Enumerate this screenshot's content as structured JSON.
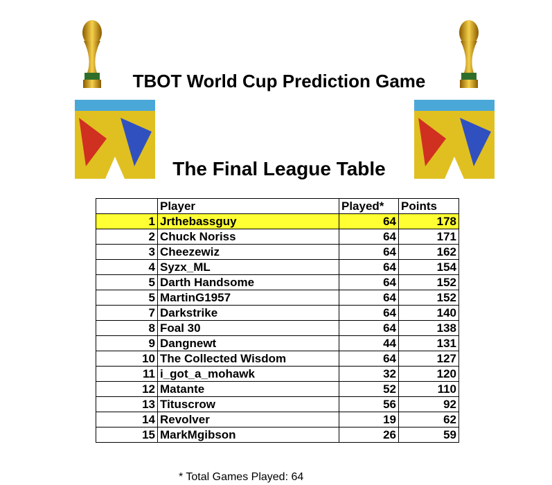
{
  "header": {
    "title": "TBOT World Cup Prediction Game",
    "subtitle": "The Final League Table"
  },
  "table": {
    "columns": [
      "Player",
      "Played*",
      "Points"
    ],
    "rows": [
      [
        1,
        "Jrthebassguy",
        64,
        178
      ],
      [
        2,
        "Chuck Noriss",
        64,
        171
      ],
      [
        3,
        "Cheezewiz",
        64,
        162
      ],
      [
        4,
        "Syzx_ML",
        64,
        154
      ],
      [
        5,
        "Darth Handsome",
        64,
        152
      ],
      [
        5,
        "MartinG1957",
        64,
        152
      ],
      [
        7,
        "Darkstrike",
        64,
        140
      ],
      [
        8,
        "Foal 30",
        64,
        138
      ],
      [
        9,
        "Dangnewt",
        44,
        131
      ],
      [
        10,
        "The Collected Wisdom",
        64,
        127
      ],
      [
        11,
        "i_got_a_mohawk",
        32,
        120
      ],
      [
        12,
        "Matante",
        52,
        110
      ],
      [
        13,
        "Tituscrow",
        56,
        92
      ],
      [
        14,
        "Revolver",
        19,
        62
      ],
      [
        15,
        "MarkMgibson",
        26,
        59
      ]
    ]
  },
  "footnote": "* Total Games Played: 64"
}
